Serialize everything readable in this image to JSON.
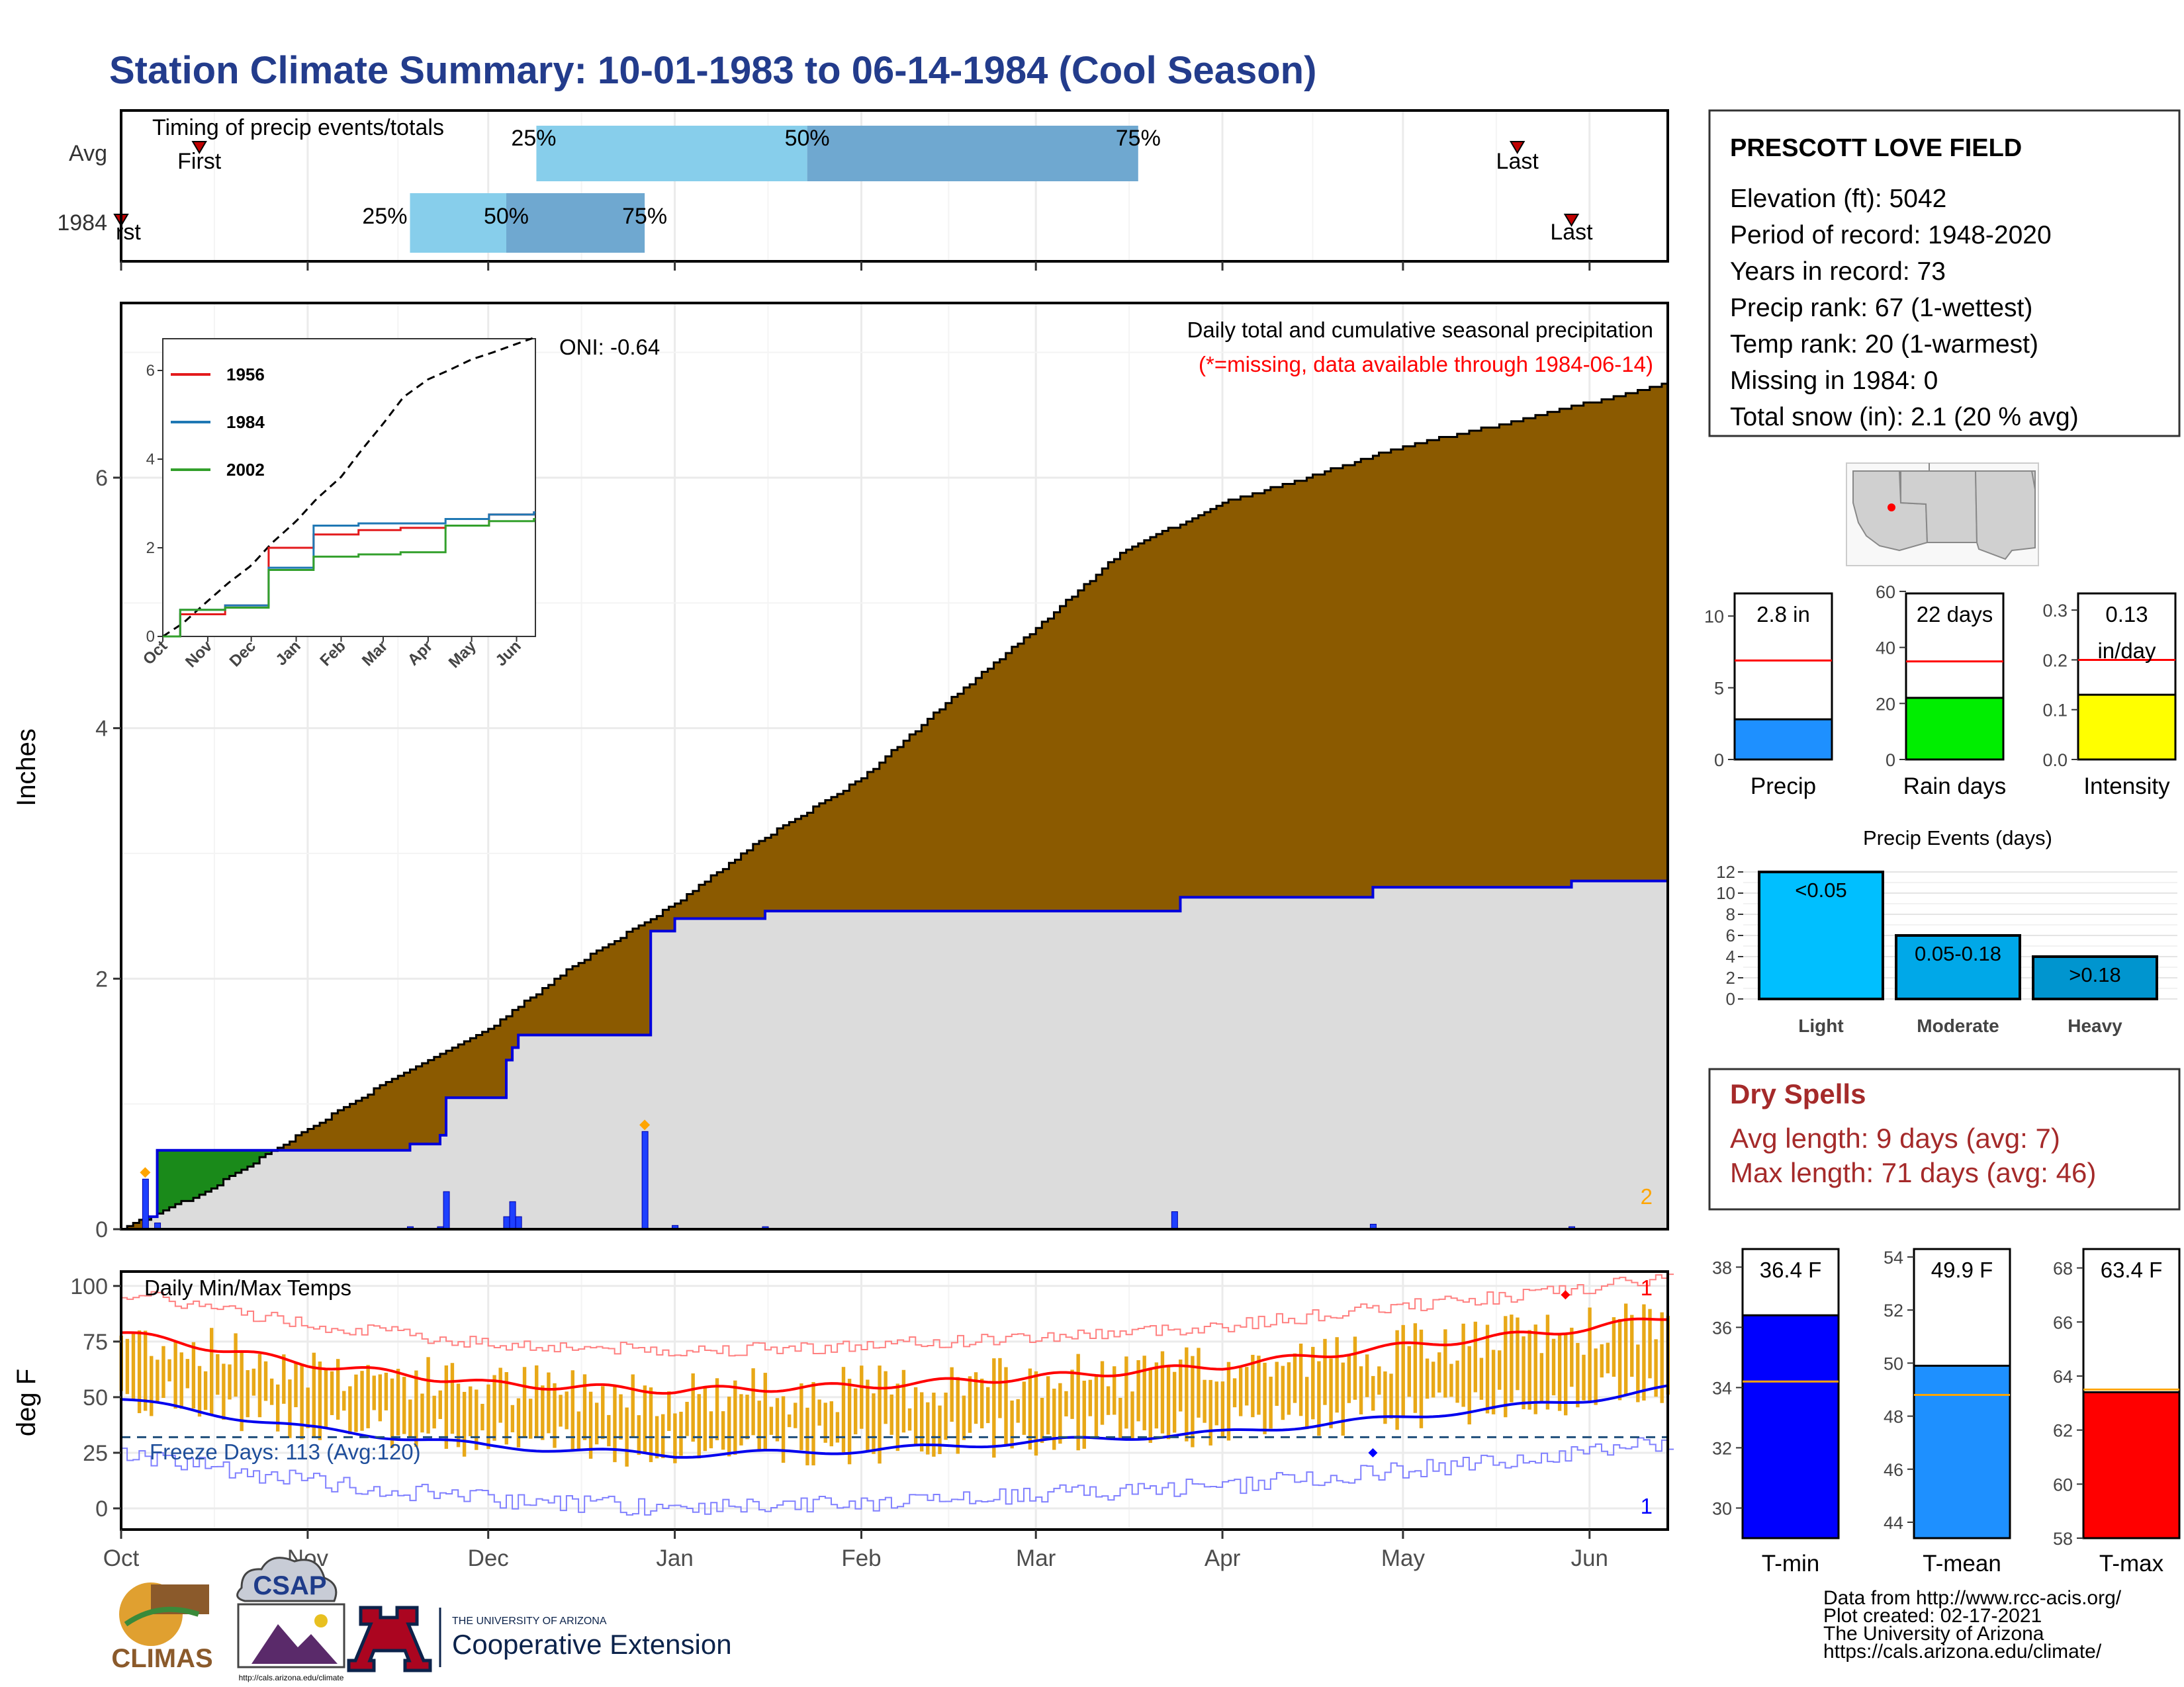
{
  "title": "Station Climate Summary: 10-01-1983 to 06-14-1984 (Cool Season)",
  "station": {
    "name": "PRESCOTT LOVE FIELD",
    "lines": [
      "Elevation (ft): 5042",
      "Period of record: 1948-2020",
      "Years in record: 73",
      "Precip rank: 67 (1-wettest)",
      "Temp rank: 20 (1-warmest)",
      "Missing in 1984: 0",
      "Total snow (in): 2.1 (20 % avg)"
    ]
  },
  "colors": {
    "title": "#233c8c",
    "light_blue": "#87ceeb",
    "mid_blue": "#6fa8d0",
    "cumulative_fill": "#8b5a00",
    "deficit_fill": "#1a8a1a",
    "current_fill": "#dcdcdc",
    "blue_line": "#0000dd",
    "red": "#ff0000",
    "orange": "#ffa500",
    "temp_bar": "#e8a817",
    "dry_spells": "#a52a2a"
  },
  "timing": {
    "title": "Timing of precip events/totals",
    "rows": [
      {
        "label": "Avg",
        "first_label": "First",
        "last_label": "Last",
        "p25": "25%",
        "p50": "50%",
        "p75": "75%",
        "first_date": "1983-10-14",
        "p25_date": "1983-12-09",
        "p50_date": "1984-01-23",
        "p75_date": "1984-03-18",
        "last_date": "1984-05-20"
      },
      {
        "label": "1984",
        "first_label": "First",
        "last_label": "Last",
        "p25": "25%",
        "p50": "50%",
        "p75": "75%",
        "first_date": "1983-10-01",
        "p25_date": "1983-11-18",
        "p50_date": "1983-12-04",
        "p75_date": "1983-12-27",
        "last_date": "1984-05-29"
      }
    ]
  },
  "precip_panel": {
    "title": "Daily total and cumulative seasonal precipitation",
    "subtitle": "(*=missing, data available through 1984-06-14)",
    "oni": "ONI: -0.64",
    "ylabel": "Inches",
    "yticks": [
      "0",
      "2",
      "4",
      "6"
    ],
    "corner_count": "2"
  },
  "inset": {
    "yticks": [
      "0",
      "2",
      "4",
      "6"
    ],
    "months": [
      "Oct",
      "Nov",
      "Dec",
      "Jan",
      "Feb",
      "Mar",
      "Apr",
      "May",
      "Jun"
    ],
    "legend": [
      "1956",
      "1984",
      "2002"
    ],
    "legend_colors": [
      "#e31a1c",
      "#1f78b4",
      "#33a02c"
    ]
  },
  "temp_panel": {
    "title": "Daily Min/Max Temps",
    "freeze": "Freeze Days: 113 (Avg:120)",
    "ylabel": "deg F",
    "yticks": [
      "0",
      "25",
      "50",
      "75",
      "100"
    ],
    "corner_top": "1",
    "corner_bottom": "1"
  },
  "months_axis": [
    "Oct",
    "Nov",
    "Dec",
    "Jan",
    "Feb",
    "Mar",
    "Apr",
    "May",
    "Jun"
  ],
  "bars_small": [
    {
      "value_label": "2.8 in",
      "axis_label": "Precip",
      "ticks": [
        "0",
        "5",
        "10"
      ],
      "color": "#1e90ff"
    },
    {
      "value_label": "22 days",
      "axis_label": "Rain days",
      "ticks": [
        "0",
        "20",
        "40",
        "60"
      ],
      "color": "#00ee00"
    },
    {
      "value_label": "0.13\nin/day",
      "axis_label": "Intensity",
      "ticks": [
        "0.0",
        "0.1",
        "0.2",
        "0.3"
      ],
      "color": "#ffff00"
    }
  ],
  "events": {
    "title": "Precip Events (days)",
    "ticks": [
      "0",
      "2",
      "4",
      "6",
      "8",
      "10",
      "12"
    ],
    "bars": [
      {
        "label": "Light",
        "range": "<0.05",
        "value": 12,
        "color": "#00bfff"
      },
      {
        "label": "Moderate",
        "range": "0.05-0.18",
        "value": 6,
        "color": "#00a8e8"
      },
      {
        "label": "Heavy",
        "range": ">0.18",
        "value": 4,
        "color": "#0095cf"
      }
    ]
  },
  "dry_spells": {
    "title": "Dry Spells",
    "avg": "Avg length: 9 days (avg: 7)",
    "max": "Max length: 71 days (avg: 46)"
  },
  "temp_bars": [
    {
      "value_label": "36.4 F",
      "axis_label": "T-min",
      "ticks": [
        "30",
        "32",
        "34",
        "36",
        "38"
      ],
      "color": "#0000ff"
    },
    {
      "value_label": "49.9 F",
      "axis_label": "T-mean",
      "ticks": [
        "44",
        "46",
        "48",
        "50",
        "52",
        "54"
      ],
      "color": "#1e90ff"
    },
    {
      "value_label": "63.4 F",
      "axis_label": "T-max",
      "ticks": [
        "58",
        "60",
        "62",
        "64",
        "66",
        "68"
      ],
      "color": "#ff0000"
    }
  ],
  "footer": {
    "lines": [
      "Data from http://www.rcc-acis.org/",
      "Plot created: 02-17-2021",
      "The University of Arizona",
      "https://cals.arizona.edu/climate/"
    ]
  },
  "logos": {
    "climas": "CLIMAS",
    "csap": "CSAP",
    "csap_url": "http://cals.arizona.edu/climate",
    "ua_line1": "THE UNIVERSITY OF ARIZONA",
    "ua_line2": "Cooperative Extension",
    "ua_letter": "A"
  },
  "chart_data": [
    {
      "type": "area",
      "title": "Daily total and cumulative seasonal precipitation",
      "ylabel": "Inches",
      "ylim": [
        0,
        7.4
      ],
      "series": [
        {
          "name": "average cumulative",
          "x": [
            "1983-10-01",
            "1983-10-15",
            "1983-11-01",
            "1983-11-15",
            "1983-12-01",
            "1983-12-15",
            "1984-01-01",
            "1984-01-15",
            "1984-02-01",
            "1984-02-15",
            "1984-03-01",
            "1984-03-15",
            "1984-04-01",
            "1984-04-15",
            "1984-05-01",
            "1984-05-15",
            "1984-06-01",
            "1984-06-14"
          ],
          "values": [
            0.0,
            0.3,
            0.8,
            1.2,
            1.6,
            2.1,
            2.6,
            3.1,
            3.6,
            4.2,
            4.8,
            5.4,
            5.8,
            6.0,
            6.25,
            6.4,
            6.6,
            6.75
          ]
        },
        {
          "name": "1984",
          "x": [
            "1983-10-01",
            "1983-10-05",
            "1983-10-07",
            "1983-11-18",
            "1983-11-23",
            "1983-11-24",
            "1983-12-04",
            "1983-12-05",
            "1983-12-06",
            "1983-12-27",
            "1983-12-28",
            "1984-01-01",
            "1984-01-16",
            "1984-03-24",
            "1984-03-25",
            "1984-04-26",
            "1984-05-29",
            "1984-06-14"
          ],
          "values": [
            0.0,
            0.1,
            0.63,
            0.68,
            0.75,
            1.05,
            1.35,
            1.45,
            1.55,
            1.55,
            2.38,
            2.48,
            2.54,
            2.54,
            2.65,
            2.73,
            2.78,
            2.78
          ]
        }
      ],
      "daily_precip": {
        "x": [
          "1983-10-05",
          "1983-10-07",
          "1983-11-18",
          "1983-11-23",
          "1983-11-24",
          "1983-12-04",
          "1983-12-05",
          "1983-12-06",
          "1983-12-27",
          "1984-01-01",
          "1984-01-16",
          "1984-03-24",
          "1984-04-26",
          "1984-05-29"
        ],
        "values": [
          0.4,
          0.05,
          0.02,
          0.02,
          0.3,
          0.1,
          0.22,
          0.1,
          0.78,
          0.03,
          0.02,
          0.14,
          0.04,
          0.02
        ]
      }
    },
    {
      "type": "line",
      "title": "",
      "xlabel": "",
      "ylim": [
        0,
        7
      ],
      "categories": [
        "Oct",
        "Nov",
        "Dec",
        "Jan",
        "Feb",
        "Mar",
        "Apr",
        "May",
        "Jun"
      ],
      "series": [
        {
          "name": "1956",
          "values": [
            0.5,
            0.7,
            2.0,
            2.3,
            2.4,
            2.45,
            2.5,
            2.75,
            2.8
          ]
        },
        {
          "name": "1984",
          "values": [
            0.6,
            0.7,
            1.55,
            2.5,
            2.55,
            2.55,
            2.65,
            2.75,
            2.8
          ]
        },
        {
          "name": "2002",
          "values": [
            0.6,
            0.65,
            1.5,
            1.8,
            1.85,
            1.9,
            2.5,
            2.6,
            2.65
          ]
        }
      ]
    },
    {
      "type": "bar",
      "title": "Daily Min/Max Temps",
      "ylabel": "deg F",
      "ylim": [
        -10,
        105
      ],
      "series": [
        {
          "name": "normal max",
          "x": [
            "1983-10-01",
            "1983-11-01",
            "1983-12-01",
            "1984-01-01",
            "1984-02-01",
            "1984-03-01",
            "1984-04-01",
            "1984-05-01",
            "1984-06-01",
            "1984-06-14"
          ],
          "values": [
            79,
            65,
            56,
            53,
            55,
            59,
            64,
            73,
            81,
            86
          ]
        },
        {
          "name": "normal min",
          "x": [
            "1983-10-01",
            "1983-11-01",
            "1983-12-01",
            "1984-01-01",
            "1984-02-01",
            "1984-03-01",
            "1984-04-01",
            "1984-05-01",
            "1984-06-01",
            "1984-06-14"
          ],
          "values": [
            49,
            36,
            28,
            24,
            26,
            30,
            34,
            41,
            49,
            54
          ]
        }
      ],
      "freeze_line": 32
    },
    {
      "type": "bar",
      "categories": [
        "Light",
        "Moderate",
        "Heavy"
      ],
      "values": [
        12,
        6,
        4
      ],
      "title": "Precip Events (days)",
      "ylim": [
        0,
        12
      ]
    },
    {
      "type": "bar",
      "categories": [
        "Precip",
        "Rain days",
        "Intensity"
      ],
      "values": [
        2.8,
        22,
        0.13
      ],
      "averages": [
        6.9,
        35,
        0.2
      ]
    },
    {
      "type": "bar",
      "categories": [
        "T-min",
        "T-mean",
        "T-max"
      ],
      "values": [
        36.4,
        49.9,
        63.4
      ],
      "averages": [
        34.2,
        48.8,
        63.5
      ]
    }
  ]
}
